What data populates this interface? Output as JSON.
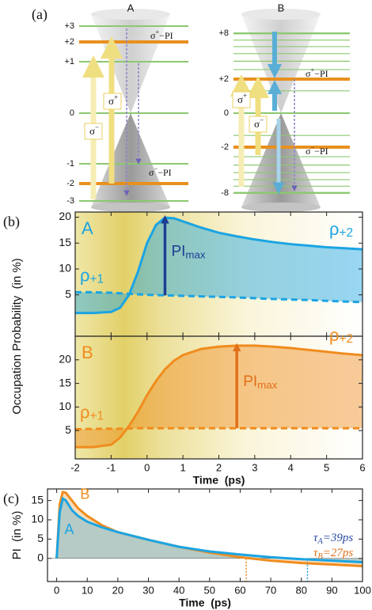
{
  "diagram": {
    "label": "(a)",
    "A": {
      "title": "A",
      "levels": [
        "+3",
        "+2",
        "+1",
        "0",
        "-1",
        "-2",
        "-3"
      ],
      "sigma_plus": "σ+",
      "sigma_minus": "σ−",
      "pi_plus": "σ+−PI",
      "pi_minus": "σ−−PI"
    },
    "B": {
      "title": "B",
      "levels": [
        "+8",
        "+2",
        "0",
        "-2",
        "-8"
      ],
      "sigma_plus": "σ+",
      "sigma_minus": "σ−",
      "pi_plus": "σ+−PI",
      "pi_minus": "σ−−PI"
    }
  },
  "chart_data": [
    {
      "type": "line",
      "label": "(b)",
      "ylabel": "Occupation Probability  (in %)",
      "annotation": "A",
      "arrow_label": "PImax",
      "fill": "between",
      "xlim": [
        -2,
        6
      ],
      "ylim": [
        -3,
        21
      ],
      "yticks": [
        5,
        10,
        15,
        20
      ],
      "background": "yellow",
      "x": [
        -2,
        -1.5,
        -1,
        -0.75,
        -0.5,
        -0.25,
        0,
        0.25,
        0.5,
        0.75,
        1,
        1.5,
        2,
        2.5,
        3,
        3.5,
        4,
        4.5,
        5,
        5.5,
        6
      ],
      "series": [
        {
          "name": "ρ+2",
          "color": "#1ba4e2",
          "style": "solid",
          "values": [
            1.5,
            1.5,
            1.7,
            2.5,
            5,
            9.5,
            15,
            18.5,
            19.9,
            19.8,
            19.2,
            18,
            17,
            16.3,
            15.7,
            15.2,
            14.8,
            14.5,
            14.2,
            14,
            13.8
          ]
        },
        {
          "name": "ρ+1",
          "color": "#1ba4e2",
          "style": "dashed",
          "values": [
            5.5,
            5.5,
            5.4,
            5.3,
            5.2,
            5.1,
            5,
            4.95,
            4.9,
            4.85,
            4.8,
            4.7,
            4.6,
            4.5,
            4.35,
            4.2,
            4.1,
            4,
            3.85,
            3.7,
            3.6
          ]
        }
      ],
      "arrow_color": "#1e3e94"
    },
    {
      "type": "line",
      "xlabel": "Time  (ps)",
      "annotation": "B",
      "arrow_label": "PImax",
      "fill": "between",
      "xlim": [
        -2,
        6
      ],
      "ylim": [
        -1,
        25
      ],
      "xticks": [
        -2,
        -1,
        0,
        1,
        2,
        3,
        4,
        5,
        6
      ],
      "yticks": [
        5,
        10,
        15,
        20
      ],
      "background": "yellow",
      "x": [
        -2,
        -1.5,
        -1,
        -0.75,
        -0.5,
        -0.25,
        0,
        0.25,
        0.5,
        0.75,
        1,
        1.5,
        2,
        2.5,
        3,
        3.5,
        4,
        4.5,
        5,
        5.5,
        6
      ],
      "series": [
        {
          "name": "ρ+2",
          "color": "#f08c1e",
          "style": "solid",
          "values": [
            1.5,
            1.5,
            2,
            3.5,
            6,
            9,
            12.5,
            15.5,
            18,
            19.8,
            21,
            22.3,
            22.8,
            23,
            23,
            22.8,
            22.5,
            22.1,
            21.7,
            21.3,
            21
          ]
        },
        {
          "name": "ρ+1",
          "color": "#f08c1e",
          "style": "dashed",
          "values": [
            5.3,
            5.35,
            5.4,
            5.4,
            5.45,
            5.5,
            5.5,
            5.5,
            5.5,
            5.5,
            5.5,
            5.5,
            5.5,
            5.5,
            5.5,
            5.5,
            5.5,
            5.5,
            5.5,
            5.5,
            5.5
          ]
        }
      ],
      "arrow_color": "#e0701a"
    },
    {
      "type": "line",
      "label": "(c)",
      "xlabel": "Time  (ps)",
      "ylabel": "PI  (in %)",
      "fill": "zero",
      "xlim": [
        -3,
        100
      ],
      "ylim": [
        -6,
        18
      ],
      "xticks": [
        0,
        10,
        20,
        30,
        40,
        50,
        60,
        70,
        80,
        90,
        100
      ],
      "yticks": [
        0,
        5,
        10,
        15
      ],
      "x": [
        0,
        1,
        2,
        3,
        5,
        7,
        10,
        15,
        20,
        30,
        40,
        50,
        60,
        70,
        80,
        90,
        100
      ],
      "series": [
        {
          "name": "B",
          "color": "#f08c1e",
          "style": "solid",
          "fit_label": "τB=27ps",
          "fit_color": "#e0701a",
          "values": [
            0,
            14,
            17.2,
            17,
            15,
            13,
            11,
            8.5,
            6.8,
            4.8,
            3,
            1.5,
            0.3,
            -0.6,
            -1.2,
            -1.6,
            -2
          ]
        },
        {
          "name": "A",
          "color": "#1ba4e2",
          "style": "solid",
          "fit_label": "τA=39ps",
          "fit_color": "#2b4aa8",
          "values": [
            0,
            12,
            15.5,
            15,
            12.5,
            11,
            9.5,
            8,
            6.8,
            4.8,
            3,
            1.8,
            1,
            0.3,
            -0.2,
            -0.6,
            -1
          ]
        }
      ],
      "markers": [
        {
          "x": 62,
          "color": "#f08c1e"
        },
        {
          "x": 82,
          "color": "#1ba4e2"
        }
      ]
    }
  ]
}
